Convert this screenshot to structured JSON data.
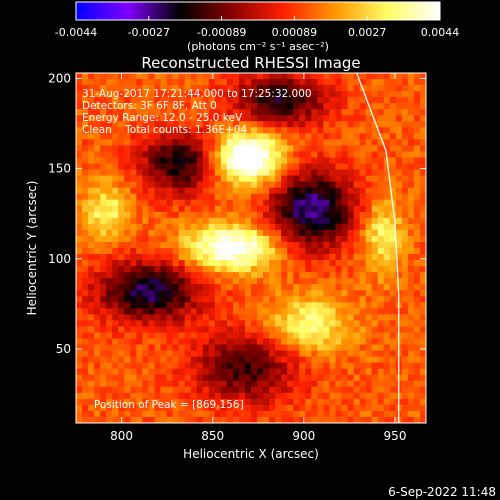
{
  "colorbar": {
    "ticks": [
      "-0.0044",
      "-0.0027",
      "-0.00089",
      "0.00089",
      "0.0027",
      "0.0044"
    ],
    "unit_label": "(photons cm⁻² s⁻¹ asec⁻²)",
    "stops": [
      "#0000ff",
      "#7f00ff",
      "#000000",
      "#8b0000",
      "#ff2000",
      "#ff9900",
      "#ffff66",
      "#ffffff"
    ]
  },
  "chart_data": {
    "type": "heatmap",
    "title": "Reconstructed RHESSI Image",
    "xlabel": "Heliocentric X (arcsec)",
    "ylabel": "Heliocentric Y (arcsec)",
    "xlim": [
      775,
      967
    ],
    "ylim": [
      9,
      203
    ],
    "xticks": [
      800,
      850,
      900,
      950
    ],
    "yticks": [
      50,
      100,
      150,
      200
    ],
    "annotations": [
      "31-Aug-2017 17:21:44.000 to 17:25:32.000",
      "Detectors: 3F 6F 8F, Att 0",
      "Energy Range: 12.0 - 25.0 keV",
      "Clean    Total counts: 1.36E+04"
    ],
    "peak_label": "Position of Peak = [869,156]",
    "peak": [
      869,
      156
    ],
    "limb": [
      [
        929,
        203
      ],
      [
        945,
        160
      ],
      [
        950,
        120
      ],
      [
        952,
        80
      ],
      [
        952,
        9
      ]
    ],
    "sources": [
      {
        "x": 869,
        "y": 156,
        "sx": 13,
        "sy": 10,
        "amp": 1.0
      },
      {
        "x": 860,
        "y": 106,
        "sx": 18,
        "sy": 9,
        "amp": 0.8
      },
      {
        "x": 792,
        "y": 126,
        "sx": 9,
        "sy": 11,
        "amp": 0.45
      },
      {
        "x": 943,
        "y": 113,
        "sx": 8,
        "sy": 14,
        "amp": 0.45
      },
      {
        "x": 902,
        "y": 63,
        "sx": 16,
        "sy": 11,
        "amp": 0.5
      }
    ],
    "negative_regions": [
      {
        "x": 905,
        "y": 127,
        "sx": 16,
        "sy": 15,
        "amp": -0.9
      },
      {
        "x": 815,
        "y": 82,
        "sx": 20,
        "sy": 12,
        "amp": -0.8
      },
      {
        "x": 832,
        "y": 153,
        "sx": 15,
        "sy": 12,
        "amp": -0.7
      },
      {
        "x": 887,
        "y": 188,
        "sx": 18,
        "sy": 10,
        "amp": -0.7
      },
      {
        "x": 868,
        "y": 40,
        "sx": 20,
        "sy": 14,
        "amp": -0.6
      }
    ]
  },
  "footer": {
    "date": "6-Sep-2022 11:48"
  }
}
